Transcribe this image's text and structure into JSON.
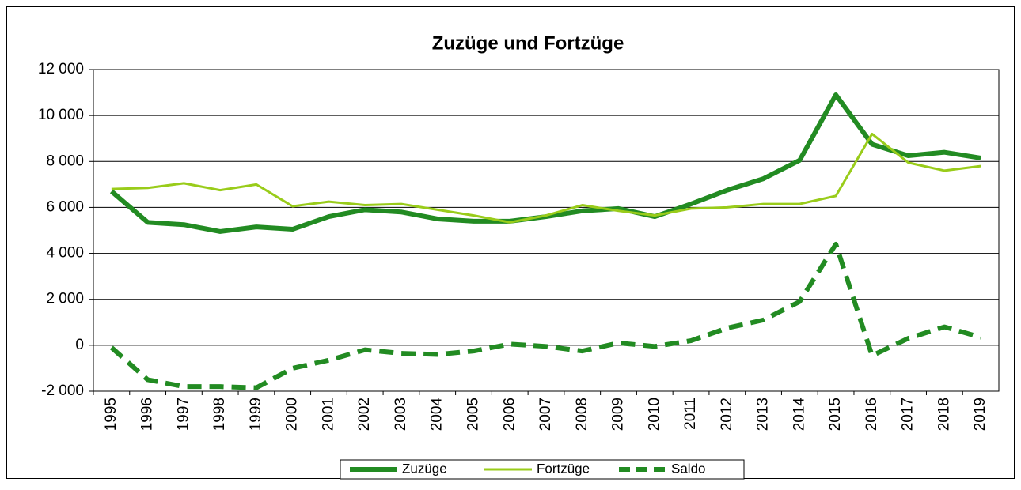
{
  "chart_data": {
    "type": "line",
    "title": "Zuzüge und Fortzüge",
    "categories": [
      "1995",
      "1996",
      "1997",
      "1998",
      "1999",
      "2000",
      "2001",
      "2002",
      "2003",
      "2004",
      "2005",
      "2006",
      "2007",
      "2008",
      "2009",
      "2010",
      "2011",
      "2012",
      "2013",
      "2014",
      "2015",
      "2016",
      "2017",
      "2018",
      "2019"
    ],
    "series": [
      {
        "name": "Zuzüge",
        "color": "#228b22",
        "width": 6,
        "dashed": false,
        "values": [
          6700,
          5350,
          5250,
          4950,
          5150,
          5050,
          5600,
          5900,
          5800,
          5500,
          5400,
          5400,
          5600,
          5850,
          5950,
          5600,
          6150,
          6750,
          7250,
          8050,
          10900,
          8750,
          8250,
          8400,
          8150
        ]
      },
      {
        "name": "Fortzüge",
        "color": "#99cc1a",
        "width": 3,
        "dashed": false,
        "values": [
          6800,
          6850,
          7050,
          6750,
          7000,
          6050,
          6250,
          6100,
          6150,
          5900,
          5650,
          5350,
          5650,
          6100,
          5850,
          5650,
          5950,
          6000,
          6150,
          6150,
          6500,
          9200,
          7950,
          7600,
          7800
        ]
      },
      {
        "name": "Saldo",
        "color": "#228b22",
        "width": 6,
        "dashed": true,
        "values": [
          -100,
          -1500,
          -1800,
          -1800,
          -1850,
          -1000,
          -650,
          -200,
          -350,
          -400,
          -250,
          50,
          -50,
          -250,
          100,
          -50,
          200,
          750,
          1100,
          1900,
          4400,
          -450,
          300,
          800,
          350
        ]
      }
    ],
    "ylim": [
      -2000,
      12000
    ],
    "yticks": [
      {
        "value": -2000,
        "label": "-2 000"
      },
      0,
      {
        "value": 2000,
        "label": "2 000"
      },
      {
        "value": 4000,
        "label": "4 000"
      },
      {
        "value": 6000,
        "label": "6 000"
      },
      {
        "value": 8000,
        "label": "8 000"
      },
      {
        "value": 10000,
        "label": "10 000"
      },
      {
        "value": 12000,
        "label": "12 000"
      }
    ],
    "grid": true,
    "legend": "bottom"
  }
}
